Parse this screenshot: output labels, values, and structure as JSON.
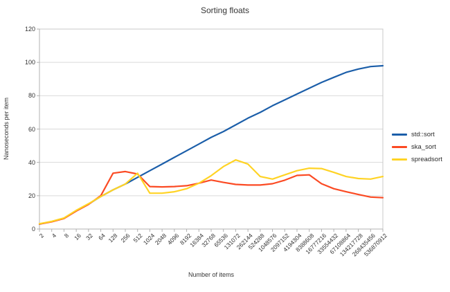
{
  "title": "Sorting floats",
  "axes": {
    "x_title": "Number of items",
    "y_title": "Nanoseconds per item",
    "y_tick_labels": [
      "0",
      "20",
      "40",
      "60",
      "80",
      "100",
      "120"
    ]
  },
  "colors": {
    "std_sort": "#1b5ea9",
    "ska_sort": "#fb4a23",
    "spreadsort": "#ffd324",
    "gridline": "#d9d9d9",
    "axis": "#b0b0b0",
    "plot_border": "#c8c8c8",
    "text": "#333333"
  },
  "legend": {
    "items": [
      {
        "label": "std::sort",
        "color": "#1b5ea9"
      },
      {
        "label": "ska_sort",
        "color": "#fb4a23"
      },
      {
        "label": "spreadsort",
        "color": "#ffd324"
      }
    ]
  },
  "chart_data": {
    "type": "line",
    "title": "Sorting floats",
    "xlabel": "Number of items",
    "ylabel": "Nanoseconds per item",
    "ylim": [
      0,
      120
    ],
    "y_tick_step": 20,
    "grid": "horizontal",
    "legend_position": "right",
    "categories": [
      "2",
      "4",
      "8",
      "16",
      "32",
      "64",
      "128",
      "256",
      "512",
      "1024",
      "2048",
      "4096",
      "8192",
      "16384",
      "32768",
      "65536",
      "131072",
      "262144",
      "524288",
      "1048576",
      "2097152",
      "4194304",
      "8388608",
      "16777216",
      "33554432",
      "67108864",
      "134217728",
      "268435456",
      "536870912"
    ],
    "series": [
      {
        "name": "std::sort",
        "color": "#1b5ea9",
        "values": [
          3,
          4.5,
          6.5,
          11,
          15,
          19.5,
          23.5,
          27,
          31,
          35,
          39,
          43,
          47,
          51,
          55,
          58.5,
          62.5,
          66.5,
          70,
          74,
          77.5,
          81,
          84.5,
          88,
          91,
          94,
          96,
          97.5,
          98
        ]
      },
      {
        "name": "ska_sort",
        "color": "#fb4a23",
        "values": [
          3,
          4.3,
          6.3,
          10.8,
          14.8,
          20,
          33.5,
          34.5,
          33,
          25.5,
          25.3,
          25.5,
          26,
          27.5,
          29.4,
          28,
          26.8,
          26.4,
          26.4,
          27.2,
          29.3,
          32.2,
          32.5,
          27.2,
          24.2,
          22.4,
          20.7,
          19.2,
          18.8
        ]
      },
      {
        "name": "spreadsort",
        "color": "#ffd324",
        "values": [
          3.2,
          4.6,
          6.6,
          11.2,
          15.2,
          19.5,
          23.5,
          27,
          33.5,
          21.5,
          21.5,
          22.4,
          24.2,
          27.5,
          32,
          37.5,
          41.5,
          39,
          31.5,
          30,
          32.5,
          35,
          36.5,
          36.3,
          34,
          31.5,
          30.3,
          30,
          31.5
        ]
      }
    ]
  }
}
